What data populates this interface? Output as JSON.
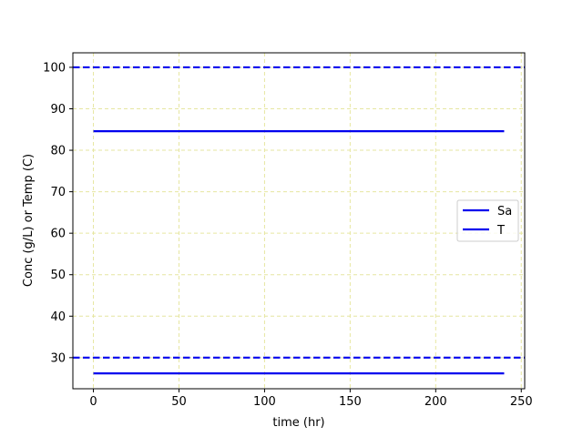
{
  "chart_data": {
    "type": "line",
    "xlabel": "time (hr)",
    "ylabel": "Conc (g/L) or Temp (C)",
    "xlim": [
      -12,
      252
    ],
    "ylim": [
      22.5,
      103.5
    ],
    "xticks": [
      0,
      50,
      100,
      150,
      200,
      250
    ],
    "yticks": [
      30,
      40,
      50,
      60,
      70,
      80,
      90,
      100
    ],
    "grid": true,
    "grid_color": "#e6e6a0",
    "legend_position": "center-right",
    "series": [
      {
        "name": "Sa",
        "x": [
          0,
          240
        ],
        "values": [
          26.2,
          26.2
        ],
        "color": "#0000ee",
        "style": "solid"
      },
      {
        "name": "T",
        "x": [
          0,
          240
        ],
        "values": [
          84.6,
          84.6
        ],
        "color": "#0000ee",
        "style": "solid"
      }
    ],
    "reference_lines": [
      {
        "y": 100,
        "color": "#0000ee",
        "style": "dashed"
      },
      {
        "y": 30,
        "color": "#0000ee",
        "style": "dashed"
      }
    ]
  }
}
